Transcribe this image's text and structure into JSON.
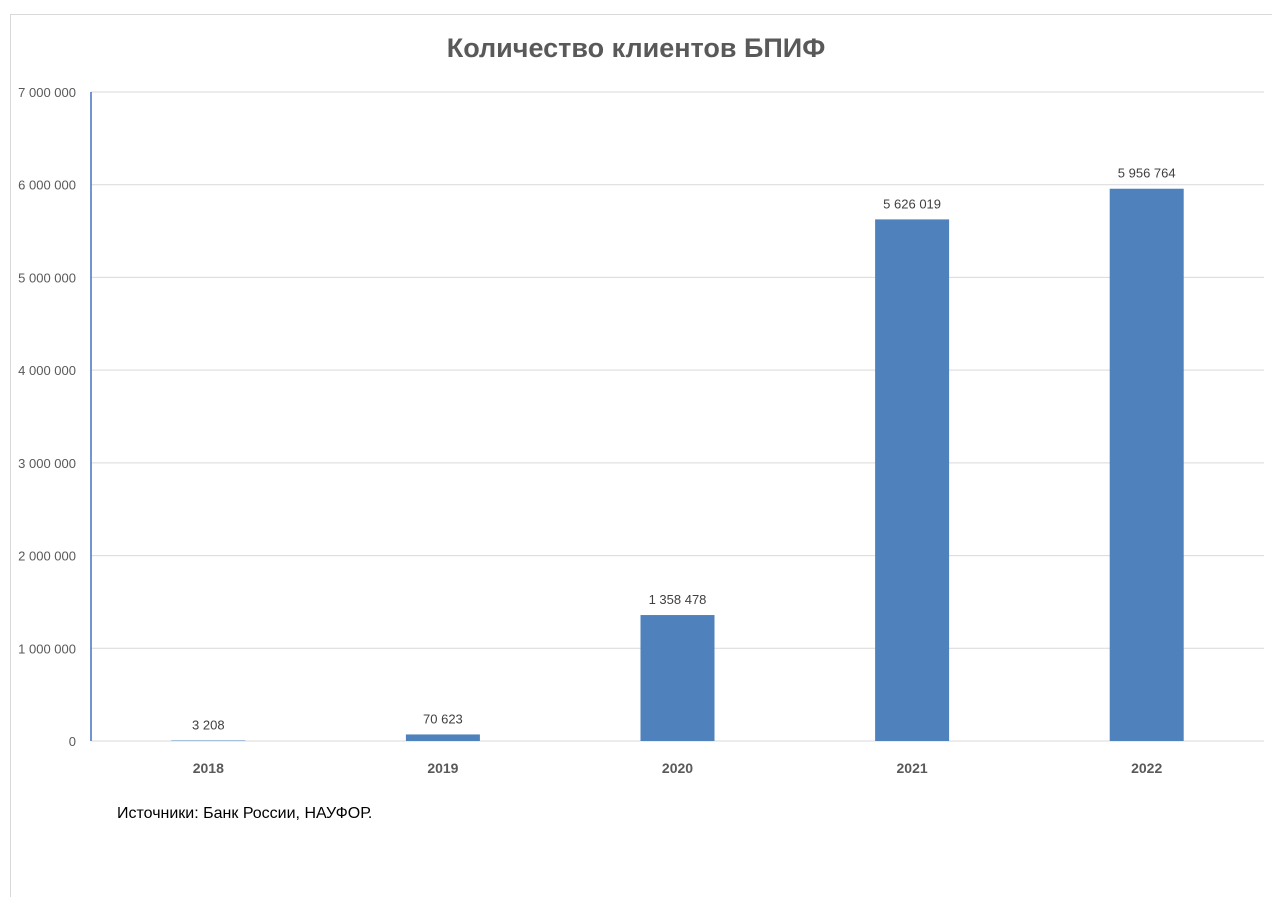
{
  "chart_data": {
    "type": "bar",
    "title": "Количество клиентов БПИФ",
    "categories": [
      "2018",
      "2019",
      "2020",
      "2021",
      "2022"
    ],
    "values": [
      3208,
      70623,
      1358478,
      5626019,
      5956764
    ],
    "data_labels": [
      "3 208",
      "70 623",
      "1 358 478",
      "5 626 019",
      "5 956 764"
    ],
    "y_ticks": [
      {
        "value": 0,
        "label": "0"
      },
      {
        "value": 1000000,
        "label": "1 000 000"
      },
      {
        "value": 2000000,
        "label": "2 000 000"
      },
      {
        "value": 3000000,
        "label": "3 000 000"
      },
      {
        "value": 4000000,
        "label": "4 000 000"
      },
      {
        "value": 5000000,
        "label": "5 000 000"
      },
      {
        "value": 6000000,
        "label": "6 000 000"
      },
      {
        "value": 7000000,
        "label": "7 000 000"
      }
    ],
    "ylim": [
      0,
      7000000
    ],
    "xlabel": "",
    "ylabel": "",
    "grid": true,
    "legend": "none",
    "bar_color": "#4f81bd",
    "gridline_color": "#d9d9d9",
    "axis_line_color": "#4472c4"
  },
  "footer": {
    "source": "Источники: Банк России, НАУФОР."
  }
}
